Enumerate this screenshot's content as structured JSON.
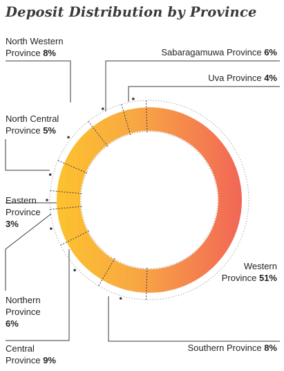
{
  "chart_data": {
    "type": "pie",
    "style": "donut",
    "title": "Deposit Distribution by Province",
    "slices": [
      {
        "label": "Western Province",
        "value": 51
      },
      {
        "label": "Southern Province",
        "value": 8
      },
      {
        "label": "Central Province",
        "value": 9
      },
      {
        "label": "Northern Province",
        "value": 6
      },
      {
        "label": "Eastern Province",
        "value": 3
      },
      {
        "label": "North Central Province",
        "value": 5
      },
      {
        "label": "North Western Province",
        "value": 8
      },
      {
        "label": "Sabaragamuwa Province",
        "value": 6
      },
      {
        "label": "Uva Province",
        "value": 4
      }
    ],
    "colors": {
      "gradient_start": "#FDC22E",
      "gradient_end": "#F26656",
      "lines": "#3a3a3a",
      "dots": "#9a9a9a"
    }
  },
  "labels": {
    "north_western": {
      "line1": "North Western",
      "line2": "Province",
      "pct": "8%"
    },
    "sabaragamuwa": {
      "text": "Sabaragamuwa Province",
      "pct": "6%"
    },
    "uva": {
      "text": "Uva Province",
      "pct": "4%"
    },
    "north_central": {
      "line1": "North Central",
      "line2": "Province",
      "pct": "5%"
    },
    "eastern": {
      "line1": "Eastern",
      "line2": "Province",
      "pct": "3%"
    },
    "western": {
      "line1": "Western",
      "line2": "Province",
      "pct": "51%"
    },
    "northern": {
      "line1": "Northern",
      "line2": "Province",
      "pct": "6%"
    },
    "central": {
      "line1": "Central",
      "line2": "Province",
      "pct": "9%"
    },
    "southern": {
      "text": "Southern Province",
      "pct": "8%"
    }
  }
}
